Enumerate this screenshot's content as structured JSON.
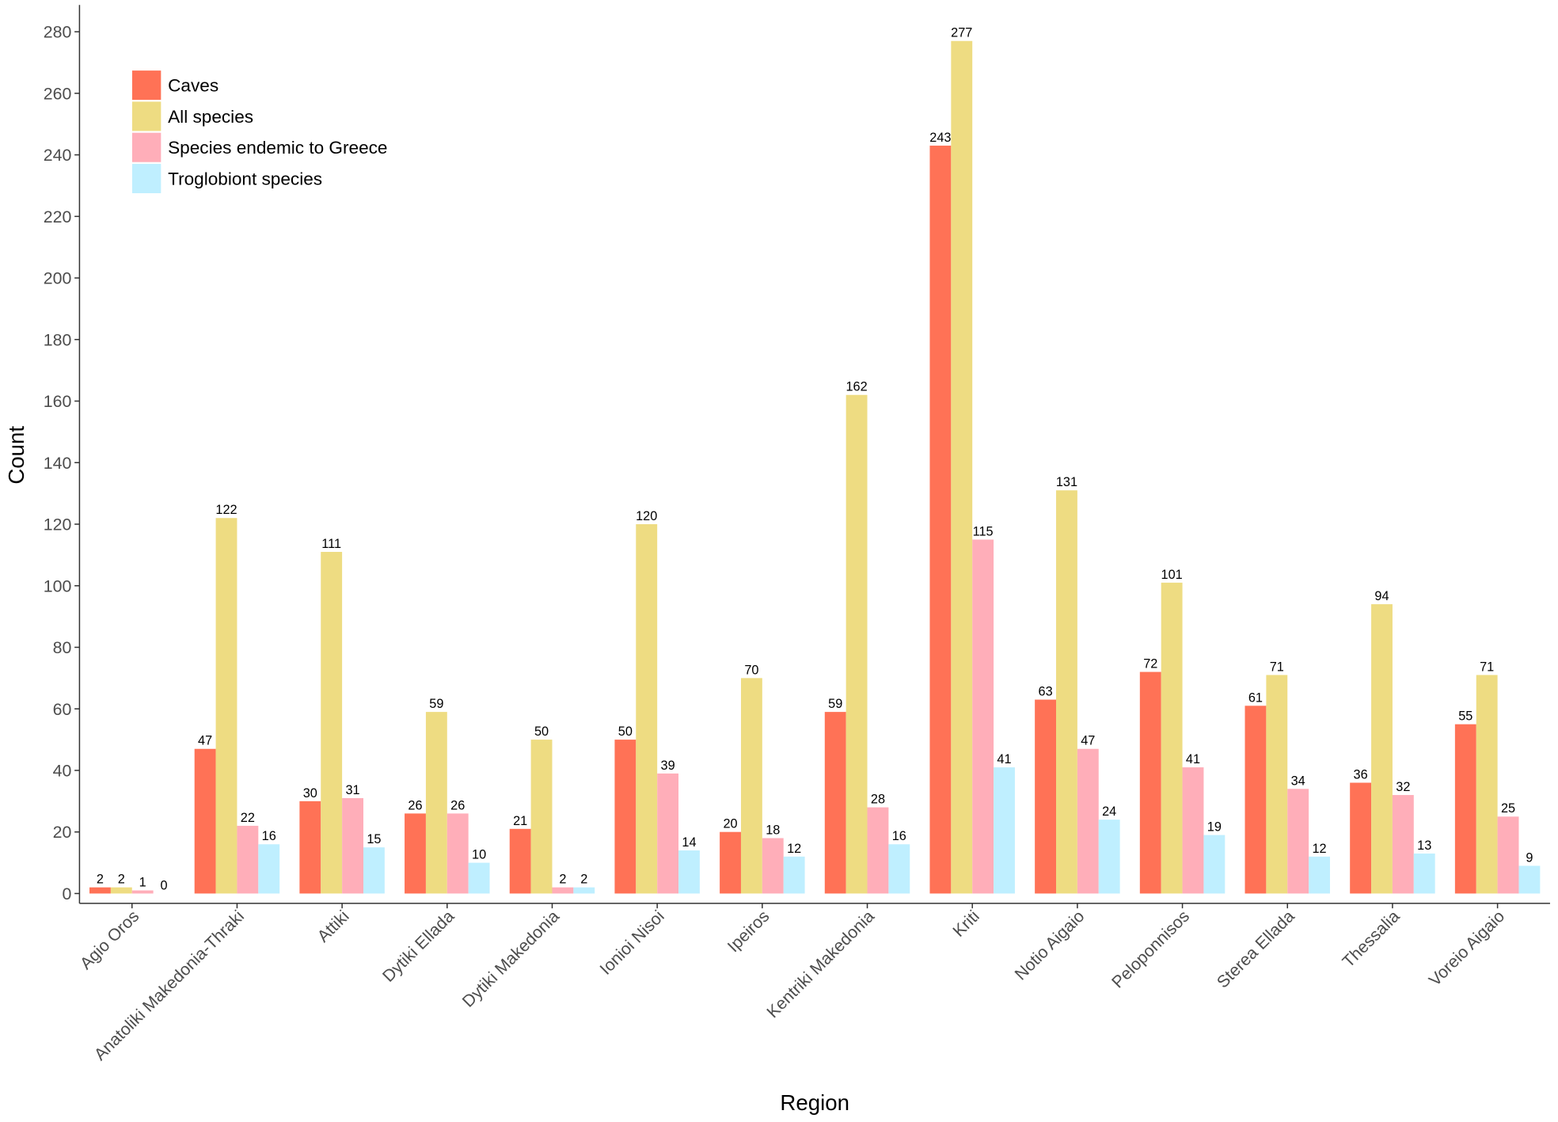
{
  "chart_data": {
    "type": "bar",
    "x_label": "Region",
    "y_label": "Count",
    "categories": [
      "Agio Oros",
      "Anatoliki Makedonia-Thraki",
      "Attiki",
      "Dytiki Ellada",
      "Dytiki Makedonia",
      "Ionioi Nisoi",
      "Ipeiros",
      "Kentriki Makedonia",
      "Kriti",
      "Notio Aigaio",
      "Peloponnisos",
      "Sterea Ellada",
      "Thessalia",
      "Voreio Aigaio"
    ],
    "series": [
      {
        "name": "Caves",
        "color": "#FF7256",
        "values": [
          2,
          47,
          30,
          26,
          21,
          50,
          20,
          59,
          243,
          63,
          72,
          61,
          36,
          55
        ]
      },
      {
        "name": "All species",
        "color": "#EEDC82",
        "values": [
          2,
          122,
          111,
          59,
          50,
          120,
          70,
          162,
          277,
          131,
          101,
          71,
          94,
          71
        ]
      },
      {
        "name": "Species endemic to Greece",
        "color": "#FFAEB9",
        "values": [
          1,
          22,
          31,
          26,
          2,
          39,
          18,
          28,
          115,
          47,
          41,
          34,
          32,
          25
        ]
      },
      {
        "name": "Troglobiont species",
        "color": "#BFEFFF",
        "values": [
          0,
          16,
          15,
          10,
          2,
          14,
          12,
          16,
          41,
          24,
          19,
          12,
          13,
          9
        ]
      }
    ],
    "ylim": [
      -3.2,
      288.7
    ],
    "yticks": [
      0,
      20,
      40,
      60,
      80,
      100,
      120,
      140,
      160,
      180,
      200,
      220,
      240,
      260,
      280
    ],
    "legend": "top-left"
  }
}
